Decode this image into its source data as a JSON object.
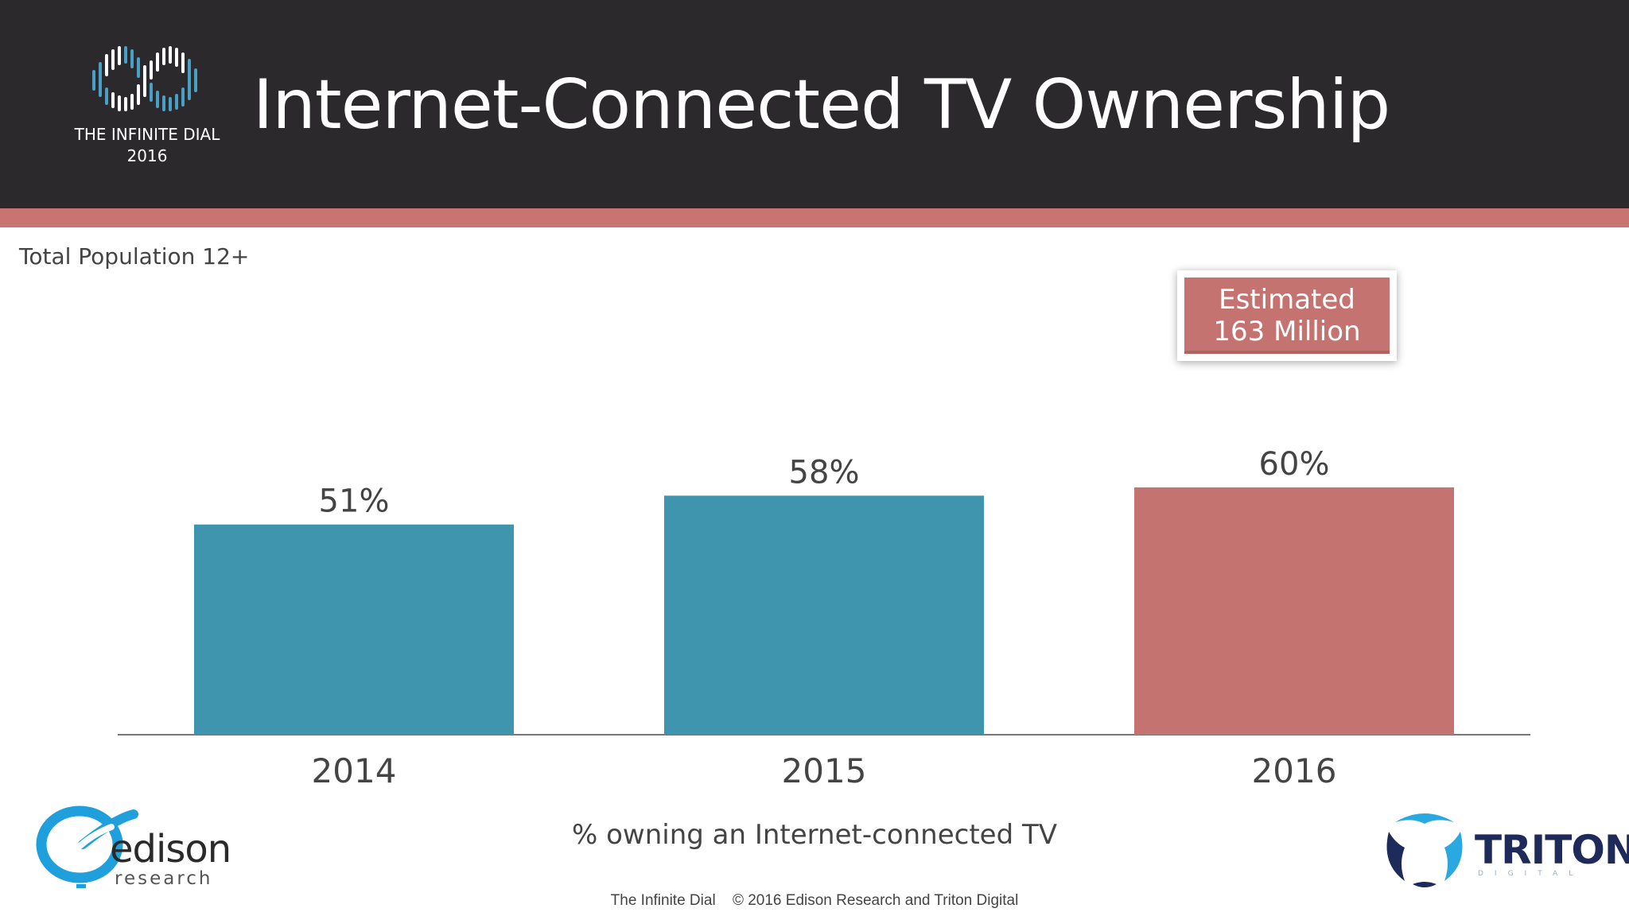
{
  "brand": {
    "logo_line1": "THE INFINITE DIAL",
    "logo_line2": "2016"
  },
  "title": "Internet-Connected TV Ownership",
  "subtitle": "Total Population 12+",
  "callout": {
    "line1": "Estimated",
    "line2": "163 Million"
  },
  "chart_data": {
    "type": "bar",
    "categories": [
      "2014",
      "2015",
      "2016"
    ],
    "values": [
      51,
      58,
      60
    ],
    "value_labels": [
      "51%",
      "58%",
      "60%"
    ],
    "bar_colors": [
      "#3f94ae",
      "#3f94ae",
      "#c57370"
    ],
    "ylim": [
      0,
      60
    ],
    "grid": false,
    "xlabel": "% owning an Internet-connected TV"
  },
  "footer": {
    "source": "The Infinite Dial",
    "copyright": "© 2016 Edison Research and Triton Digital"
  },
  "logos": {
    "edison_name": "edison",
    "edison_sub": "research",
    "triton_name": "TRITON",
    "triton_sub": "DIGITAL"
  },
  "colors": {
    "header_bg": "#2b292b",
    "accent": "#c97470",
    "bar_blue": "#3f94ae",
    "bar_red": "#c57370"
  }
}
